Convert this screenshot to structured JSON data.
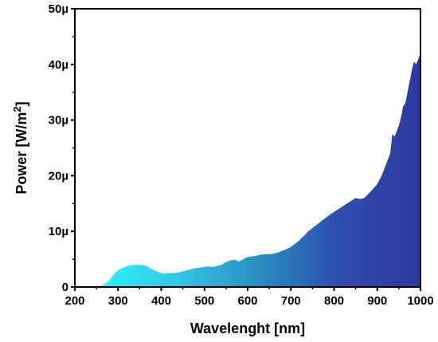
{
  "chart_data": {
    "type": "area",
    "title": "",
    "xlabel": "Wavelenght [nm]",
    "ylabel": "Power [W/m",
    "ylabel_superscript": "2",
    "ylabel_close": "]",
    "xlim": [
      200,
      1000
    ],
    "ylim": [
      0,
      50
    ],
    "y_unit_suffix": "µ",
    "x_ticks": [
      200,
      300,
      400,
      500,
      600,
      700,
      800,
      900,
      1000
    ],
    "y_ticks": [
      0,
      10,
      20,
      30,
      40,
      50
    ],
    "y_tick_labels": [
      "0",
      "10µ",
      "20µ",
      "30µ",
      "40µ",
      "50µ"
    ],
    "grid": false,
    "gradient_colors": [
      "#2ef2ff",
      "#34c6e6",
      "#2a8fbf",
      "#2e4cb0",
      "#2d3a9c"
    ],
    "series": [
      {
        "x": [
          250,
          260,
          270,
          280,
          290,
          300,
          310,
          320,
          330,
          340,
          350,
          360,
          370,
          380,
          390,
          400,
          410,
          420,
          430,
          440,
          450,
          460,
          470,
          480,
          490,
          500,
          510,
          520,
          530,
          540,
          550,
          560,
          570,
          580,
          590,
          600,
          610,
          620,
          630,
          640,
          650,
          660,
          670,
          680,
          690,
          700,
          710,
          720,
          730,
          740,
          750,
          760,
          770,
          780,
          790,
          800,
          810,
          820,
          830,
          840,
          850,
          860,
          870,
          880,
          890,
          900,
          910,
          920,
          930,
          935,
          940,
          945,
          950,
          955,
          960,
          965,
          970,
          975,
          980,
          985,
          990,
          995,
          1000
        ],
        "values": [
          0.0,
          0.2,
          0.6,
          1.2,
          2.2,
          3.0,
          3.4,
          3.7,
          3.9,
          4.0,
          4.0,
          3.9,
          3.6,
          3.1,
          2.8,
          2.5,
          2.4,
          2.5,
          2.5,
          2.6,
          2.8,
          3.0,
          3.2,
          3.4,
          3.5,
          3.6,
          3.7,
          3.6,
          3.8,
          4.0,
          4.5,
          4.8,
          4.9,
          4.6,
          5.0,
          5.4,
          5.5,
          5.6,
          5.8,
          5.9,
          5.9,
          6.0,
          6.2,
          6.5,
          6.8,
          7.2,
          7.8,
          8.4,
          9.2,
          10.0,
          10.6,
          11.2,
          11.8,
          12.4,
          13.0,
          13.5,
          14.0,
          14.5,
          15.0,
          15.5,
          16.0,
          15.8,
          16.0,
          16.8,
          17.6,
          18.5,
          20.0,
          22.0,
          24.0,
          27.5,
          27.0,
          28.0,
          29.0,
          30.5,
          32.5,
          33.0,
          35.0,
          37.0,
          39.0,
          40.5,
          40.0,
          41.0,
          42.0
        ]
      }
    ]
  }
}
